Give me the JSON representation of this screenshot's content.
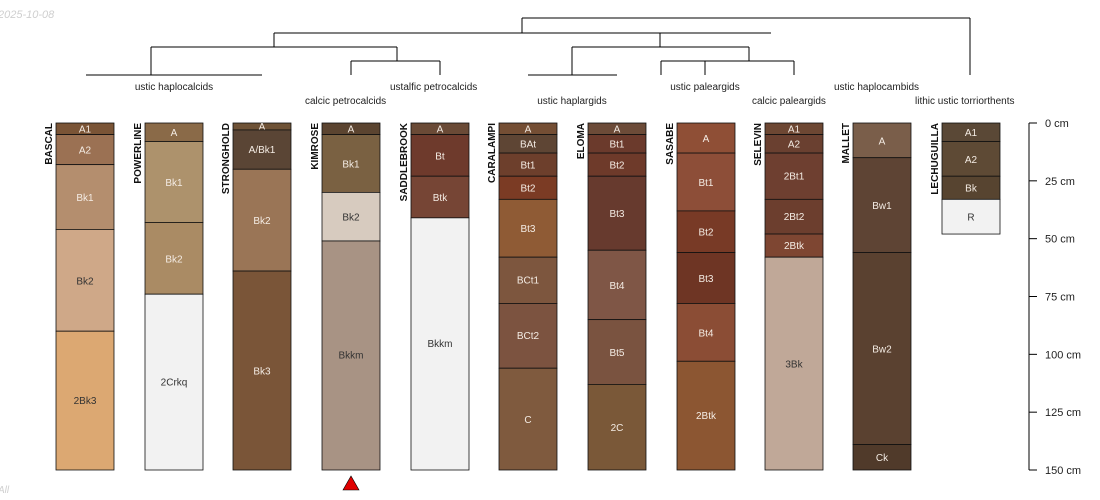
{
  "date_text": "2025-10-08",
  "corner_text": "All",
  "chart_data": {
    "type": "soil-profile-sketch",
    "depth_unit": "cm",
    "depth_range": [
      0,
      150
    ],
    "depth_ticks": [
      0,
      25,
      50,
      75,
      100,
      125,
      150
    ],
    "depth_tick_labels": [
      "0 cm",
      "25 cm",
      "50 cm",
      "75 cm",
      "100 cm",
      "125 cm",
      "150 cm"
    ],
    "dendrogram_leaf_order": [
      "BASCAL",
      "POWERLINE",
      "STRONGHOLD",
      "KIMROSE",
      "SADDLEBROOK",
      "CARALAMPI",
      "ELOMA",
      "SASABE",
      "SELEVIN",
      "MALLET",
      "LECHUGUILLA"
    ],
    "taxa_groups": [
      {
        "label": "ustic haplocalcids",
        "members": [
          "BASCAL",
          "POWERLINE",
          "STRONGHOLD"
        ]
      },
      {
        "label": "calcic petrocalcids",
        "members": [
          "KIMROSE"
        ]
      },
      {
        "label": "ustalfic petrocalcids",
        "members": [
          "SADDLEBROOK"
        ]
      },
      {
        "label": "ustic haplargids",
        "members": [
          "CARALAMPI",
          "ELOMA"
        ]
      },
      {
        "label": "ustic paleargids",
        "members": [
          "SASABE"
        ]
      },
      {
        "label": "calcic paleargids",
        "members": [
          "SELEVIN"
        ]
      },
      {
        "label": "ustic haplocambids",
        "members": [
          "MALLET"
        ]
      },
      {
        "label": "lithic ustic torriorthents",
        "members": [
          "LECHUGUILLA"
        ]
      }
    ],
    "profiles": [
      {
        "name": "BASCAL",
        "horizons": [
          {
            "name": "A1",
            "top": 0,
            "bottom": 5,
            "color": "#7a5436"
          },
          {
            "name": "A2",
            "top": 5,
            "bottom": 18,
            "color": "#9b7153"
          },
          {
            "name": "Bk1",
            "top": 18,
            "bottom": 46,
            "color": "#b48e6e"
          },
          {
            "name": "Bk2",
            "top": 46,
            "bottom": 90,
            "color": "#cfa888"
          },
          {
            "name": "2Bk3",
            "top": 90,
            "bottom": 150,
            "color": "#dca872"
          }
        ]
      },
      {
        "name": "POWERLINE",
        "horizons": [
          {
            "name": "A",
            "top": 0,
            "bottom": 8,
            "color": "#8a6a48"
          },
          {
            "name": "Bk1",
            "top": 8,
            "bottom": 43,
            "color": "#ad926c"
          },
          {
            "name": "Bk2",
            "top": 43,
            "bottom": 74,
            "color": "#aa8b64"
          },
          {
            "name": "2Crkq",
            "top": 74,
            "bottom": 150,
            "color": "#f2f2f2"
          }
        ]
      },
      {
        "name": "STRONGHOLD",
        "horizons": [
          {
            "name": "A",
            "top": 0,
            "bottom": 3,
            "color": "#6e5236"
          },
          {
            "name": "A/Bk1",
            "top": 3,
            "bottom": 20,
            "color": "#5a4535"
          },
          {
            "name": "Bk2",
            "top": 20,
            "bottom": 64,
            "color": "#9a7556"
          },
          {
            "name": "Bk3",
            "top": 64,
            "bottom": 150,
            "color": "#7a5538"
          }
        ]
      },
      {
        "name": "KIMROSE",
        "truncated": true,
        "horizons": [
          {
            "name": "A",
            "top": 0,
            "bottom": 5,
            "color": "#5b4430"
          },
          {
            "name": "Bk1",
            "top": 5,
            "bottom": 30,
            "color": "#7a6142"
          },
          {
            "name": "Bk2",
            "top": 30,
            "bottom": 51,
            "color": "#d7cbbf"
          },
          {
            "name": "Bkkm",
            "top": 51,
            "bottom": 150,
            "color": "#a89384"
          }
        ]
      },
      {
        "name": "SADDLEBROOK",
        "horizons": [
          {
            "name": "A",
            "top": 0,
            "bottom": 5,
            "color": "#6a4a36"
          },
          {
            "name": "Bt",
            "top": 5,
            "bottom": 23,
            "color": "#6e3a2c"
          },
          {
            "name": "Btk",
            "top": 23,
            "bottom": 41,
            "color": "#764535"
          },
          {
            "name": "Bkkm",
            "top": 41,
            "bottom": 150,
            "color": "#f2f2f2"
          }
        ]
      },
      {
        "name": "CARALAMPI",
        "horizons": [
          {
            "name": "A",
            "top": 0,
            "bottom": 5,
            "color": "#744e34"
          },
          {
            "name": "BAt",
            "top": 5,
            "bottom": 13,
            "color": "#5e4534"
          },
          {
            "name": "Bt1",
            "top": 13,
            "bottom": 23,
            "color": "#6d3f2c"
          },
          {
            "name": "Bt2",
            "top": 23,
            "bottom": 33,
            "color": "#7b3b24"
          },
          {
            "name": "Bt3",
            "top": 33,
            "bottom": 58,
            "color": "#8f5b35"
          },
          {
            "name": "BCt1",
            "top": 58,
            "bottom": 78,
            "color": "#7d563e"
          },
          {
            "name": "BCt2",
            "top": 78,
            "bottom": 106,
            "color": "#7c5340"
          },
          {
            "name": "C",
            "top": 106,
            "bottom": 150,
            "color": "#7f5a3e"
          }
        ]
      },
      {
        "name": "ELOMA",
        "horizons": [
          {
            "name": "A",
            "top": 0,
            "bottom": 5,
            "color": "#6c4b38"
          },
          {
            "name": "Bt1",
            "top": 5,
            "bottom": 13,
            "color": "#6b3a2c"
          },
          {
            "name": "Bt2",
            "top": 13,
            "bottom": 23,
            "color": "#6e3a2a"
          },
          {
            "name": "Bt3",
            "top": 23,
            "bottom": 55,
            "color": "#673a2e"
          },
          {
            "name": "Bt4",
            "top": 55,
            "bottom": 85,
            "color": "#7f5646"
          },
          {
            "name": "Bt5",
            "top": 85,
            "bottom": 113,
            "color": "#7a5340"
          },
          {
            "name": "2C",
            "top": 113,
            "bottom": 150,
            "color": "#7a5838"
          }
        ]
      },
      {
        "name": "SASABE",
        "horizons": [
          {
            "name": "A",
            "top": 0,
            "bottom": 13,
            "color": "#8f4f36"
          },
          {
            "name": "Bt1",
            "top": 13,
            "bottom": 38,
            "color": "#8d4e38"
          },
          {
            "name": "Bt2",
            "top": 38,
            "bottom": 56,
            "color": "#783a26"
          },
          {
            "name": "Bt3",
            "top": 56,
            "bottom": 78,
            "color": "#6e3524"
          },
          {
            "name": "Bt4",
            "top": 78,
            "bottom": 103,
            "color": "#8b4d35"
          },
          {
            "name": "2Btk",
            "top": 103,
            "bottom": 150,
            "color": "#8c5632"
          }
        ]
      },
      {
        "name": "SELEVIN",
        "horizons": [
          {
            "name": "A1",
            "top": 0,
            "bottom": 5,
            "color": "#6d4733"
          },
          {
            "name": "A2",
            "top": 5,
            "bottom": 13,
            "color": "#6a4030"
          },
          {
            "name": "2Bt1",
            "top": 13,
            "bottom": 33,
            "color": "#6e3f30"
          },
          {
            "name": "2Bt2",
            "top": 33,
            "bottom": 48,
            "color": "#6c3e2e"
          },
          {
            "name": "2Btk",
            "top": 48,
            "bottom": 58,
            "color": "#7e4632"
          },
          {
            "name": "3Bk",
            "top": 58,
            "bottom": 150,
            "color": "#c0a898"
          }
        ]
      },
      {
        "name": "MALLET",
        "horizons": [
          {
            "name": "A",
            "top": 0,
            "bottom": 15,
            "color": "#7a5e4a"
          },
          {
            "name": "Bw1",
            "top": 15,
            "bottom": 56,
            "color": "#5e4434"
          },
          {
            "name": "Bw2",
            "top": 56,
            "bottom": 139,
            "color": "#5a4130"
          },
          {
            "name": "Ck",
            "top": 139,
            "bottom": 150,
            "color": "#503a2a"
          }
        ]
      },
      {
        "name": "LECHUGUILLA",
        "horizons": [
          {
            "name": "A1",
            "top": 0,
            "bottom": 8,
            "color": "#5a4836"
          },
          {
            "name": "A2",
            "top": 8,
            "bottom": 23,
            "color": "#5e4a35"
          },
          {
            "name": "Bk",
            "top": 23,
            "bottom": 33,
            "color": "#574430"
          },
          {
            "name": "R",
            "top": 33,
            "bottom": 48,
            "color": "#f2f2f2"
          }
        ]
      }
    ]
  }
}
